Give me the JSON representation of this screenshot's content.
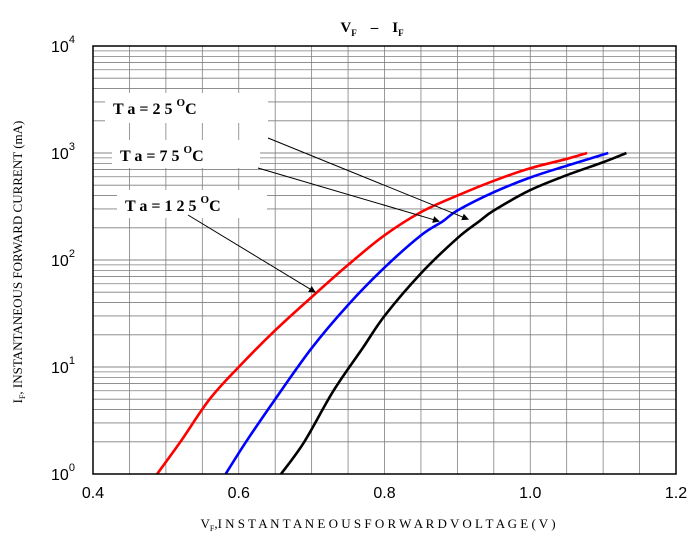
{
  "chart_data": {
    "type": "line",
    "title": {
      "main": "V",
      "sub1": "F",
      "dash": "–",
      "main2": "I",
      "sub2": "F"
    },
    "xlabel": {
      "main": "V",
      "sub": "F",
      "rest": ",I N S T A N T A N E O U S  F O R W A R D  V O L T A G E ( V )"
    },
    "ylabel": {
      "main": "I",
      "sub": "F",
      "rest": ", INSTANTANEOUS FORWARD CURRENT (mA)"
    },
    "xlim": [
      0.4,
      1.2
    ],
    "ylim": [
      1,
      10000
    ],
    "yscale": "log",
    "grid": true,
    "xticks": [
      "0.4",
      "0.6",
      "0.8",
      "1.0",
      "1.2"
    ],
    "xtick_values": [
      0.4,
      0.6,
      0.8,
      1.0,
      1.2
    ],
    "yticks": [
      {
        "base": "10",
        "exp": "0"
      },
      {
        "base": "10",
        "exp": "1"
      },
      {
        "base": "10",
        "exp": "2"
      },
      {
        "base": "10",
        "exp": "3"
      },
      {
        "base": "10",
        "exp": "4"
      }
    ],
    "ytick_values": [
      1,
      10,
      100,
      1000,
      10000
    ],
    "series": [
      {
        "color": "#ff0000",
        "points": [
          [
            0.488,
            1
          ],
          [
            0.52,
            2
          ],
          [
            0.56,
            5
          ],
          [
            0.6,
            10
          ],
          [
            0.65,
            22
          ],
          [
            0.7,
            45
          ],
          [
            0.75,
            90
          ],
          [
            0.8,
            170
          ],
          [
            0.85,
            280
          ],
          [
            0.9,
            400
          ],
          [
            0.95,
            550
          ],
          [
            1.0,
            720
          ],
          [
            1.05,
            880
          ],
          [
            1.078,
            1000
          ]
        ]
      },
      {
        "color": "#0000ff",
        "points": [
          [
            0.582,
            1
          ],
          [
            0.61,
            2
          ],
          [
            0.65,
            5
          ],
          [
            0.7,
            15
          ],
          [
            0.75,
            38
          ],
          [
            0.8,
            85
          ],
          [
            0.85,
            170
          ],
          [
            0.88,
            230
          ],
          [
            0.9,
            290
          ],
          [
            0.95,
            430
          ],
          [
            1.0,
            590
          ],
          [
            1.05,
            760
          ],
          [
            1.107,
            1000
          ]
        ]
      },
      {
        "color": "#000000",
        "points": [
          [
            0.658,
            1
          ],
          [
            0.69,
            2
          ],
          [
            0.73,
            6
          ],
          [
            0.77,
            15
          ],
          [
            0.8,
            30
          ],
          [
            0.85,
            75
          ],
          [
            0.9,
            160
          ],
          [
            0.93,
            230
          ],
          [
            0.95,
            290
          ],
          [
            1.0,
            450
          ],
          [
            1.05,
            620
          ],
          [
            1.1,
            820
          ],
          [
            1.132,
            1000
          ]
        ]
      }
    ],
    "annotations": [
      {
        "text": "T a =  2 5",
        "deg": "O",
        "unit": "C",
        "arrow_to": [
          0.915,
          240
        ]
      },
      {
        "text": "T a =  7 5",
        "deg": "O",
        "unit": "C",
        "arrow_to": [
          0.875,
          230
        ]
      },
      {
        "text": "T a =  1 2 5",
        "deg": "O",
        "unit": "C",
        "arrow_to": [
          0.705,
          50
        ]
      }
    ]
  }
}
